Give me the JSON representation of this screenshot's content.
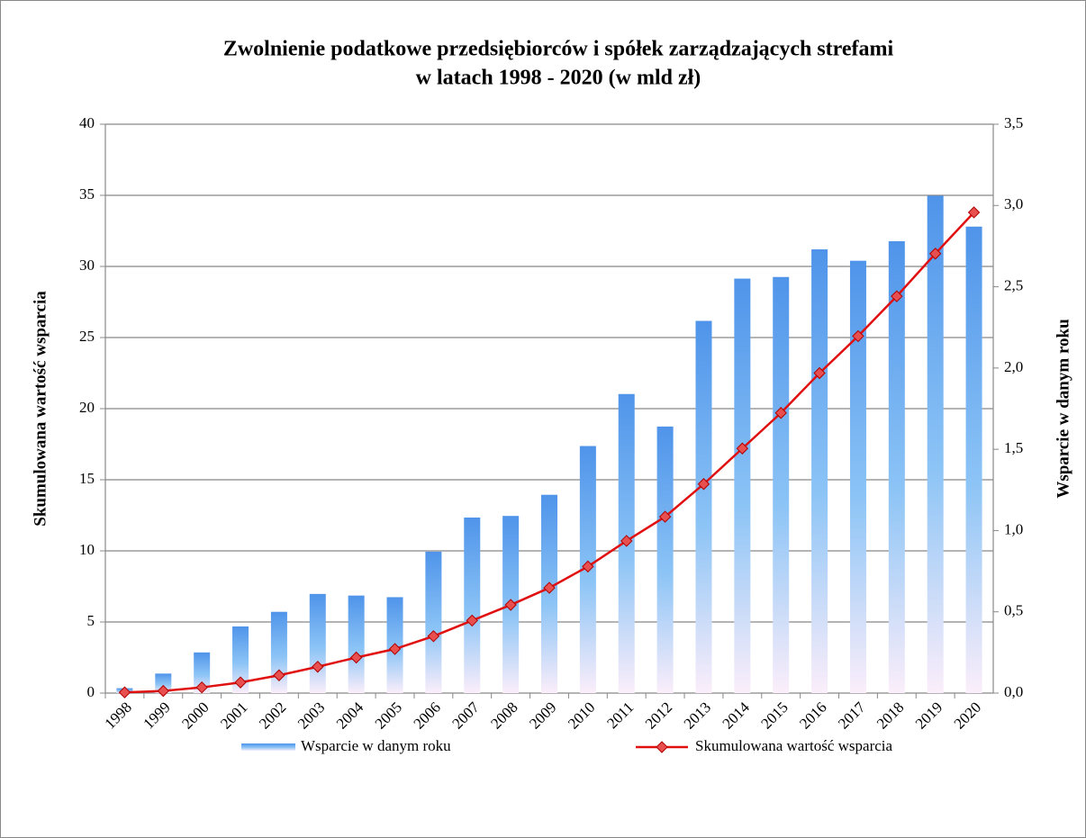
{
  "chart_data": {
    "type": "bar-line",
    "title": [
      "Zwolnienie podatkowe przedsiębiorców i spółek zarządzających strefami",
      "w latach 1998 - 2020 (w mld zł)"
    ],
    "ylabel": "Skumulowana wartość wsparcia",
    "y2label": "Wsparcie w danym roku",
    "categories": [
      "1998",
      "1999",
      "2000",
      "2001",
      "2002",
      "2003",
      "2004",
      "2005",
      "2006",
      "2007",
      "2008",
      "2009",
      "2010",
      "2011",
      "2012",
      "2013",
      "2014",
      "2015",
      "2016",
      "2017",
      "2018",
      "2019",
      "2020"
    ],
    "series": [
      {
        "name": "Wsparcie w danym roku",
        "type": "bar",
        "axis": "y2",
        "color": "#4f94ea",
        "values": [
          0.03,
          0.12,
          0.25,
          0.41,
          0.5,
          0.61,
          0.6,
          0.59,
          0.87,
          1.08,
          1.09,
          1.22,
          1.52,
          1.84,
          1.64,
          2.29,
          2.55,
          2.56,
          2.73,
          2.66,
          2.78,
          3.06,
          2.87
        ]
      },
      {
        "name": "Skumulowana wartość wsparcia",
        "type": "line",
        "axis": "y",
        "color": "#e01010",
        "values": [
          0.05,
          0.15,
          0.4,
          0.75,
          1.25,
          1.85,
          2.5,
          3.1,
          4.0,
          5.1,
          6.2,
          7.4,
          8.9,
          10.7,
          12.4,
          14.7,
          17.2,
          19.7,
          22.5,
          25.1,
          27.9,
          30.9,
          33.8
        ]
      }
    ],
    "ylim": [
      0,
      40
    ],
    "yticks": [
      0,
      5,
      10,
      15,
      20,
      25,
      30,
      35,
      40
    ],
    "y2lim": [
      0,
      3.5
    ],
    "y2ticks": [
      {
        "value": 0,
        "label": "0,0"
      },
      {
        "value": 0.5,
        "label": "0,5"
      },
      {
        "value": 1,
        "label": "1,0"
      },
      {
        "value": 1.5,
        "label": "1,5"
      },
      {
        "value": 2,
        "label": "2,0"
      },
      {
        "value": 2.5,
        "label": "2,5"
      },
      {
        "value": 3,
        "label": "3,0"
      },
      {
        "value": 3.5,
        "label": "3,5"
      }
    ],
    "grid": true,
    "legend": "bottom"
  }
}
